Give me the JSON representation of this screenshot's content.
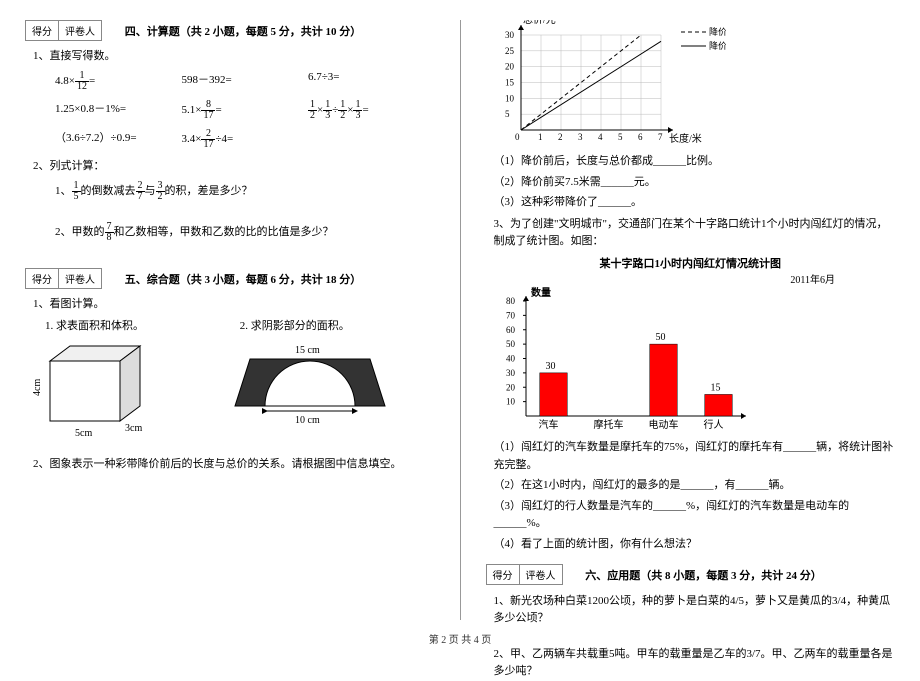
{
  "left": {
    "scorebox": {
      "l": "得分",
      "r": "评卷人"
    },
    "sec4_title": "四、计算题（共 2 小题，每题 5 分，共计 10 分）",
    "q1_head": "1、直接写得数。",
    "eq": {
      "r1a_pre": "4.8×",
      "r1a_num": "1",
      "r1a_den": "12",
      "r1a_post": "=",
      "r1b": "598－392=",
      "r1c": "6.7÷3=",
      "r2a": "1.25×0.8－1%=",
      "r2b_pre": "5.1×",
      "r2b_num": "8",
      "r2b_den": "17",
      "r2b_post": "=",
      "r2c": "×",
      "r2c_div": "÷",
      "r2c_eq": "=",
      "f12n": "1",
      "f12d": "2",
      "f13n": "1",
      "f13d": "3",
      "r3a": "（3.6÷7.2）÷0.9=",
      "r3b_pre": "3.4×",
      "r3b_num": "2",
      "r3b_den": "17",
      "r3b_post": "÷4="
    },
    "q2_head": "2、列式计算：",
    "q2_1_pre": "1、",
    "q2_1_a": "的倒数减去",
    "q2_1_b": "与",
    "q2_1_c": "的积，差是多少？",
    "f15n": "1",
    "f15d": "5",
    "f27n": "2",
    "f27d": "7",
    "f32n": "3",
    "f32d": "2",
    "q2_2_pre": "2、甲数的",
    "q2_2_a": "和乙数相等，甲数和乙数的比的比值是多少？",
    "f78n": "7",
    "f78d": "8",
    "sec5_title": "五、综合题（共 3 小题，每题 6 分，共计 18 分）",
    "q5_1_head": "1、看图计算。",
    "q5_1_1": "1. 求表面积和体积。",
    "q5_1_2": "2. 求阴影部分的面积。",
    "box": {
      "h": "4cm",
      "d": "3cm",
      "w": "5cm"
    },
    "arch": {
      "top": "15 cm",
      "bot": "10 cm"
    },
    "q5_2": "2、图象表示一种彩带降价前后的长度与总价的关系。请根据图中信息填空。"
  },
  "right": {
    "chart1": {
      "ylabel": "总价/元",
      "xlabel": "长度/米",
      "legend1": "降价前",
      "legend2": "降价后",
      "xticks": [
        "0",
        "1",
        "2",
        "3",
        "4",
        "5",
        "6",
        "7"
      ],
      "yticks": [
        "5",
        "10",
        "15",
        "20",
        "25",
        "30"
      ],
      "grid_color": "#bbb",
      "line1_dash": "4,3",
      "line_color": "#000",
      "bg": "#fff"
    },
    "c1_q1": "（1）降价前后，长度与总价都成______比例。",
    "c1_q2": "（2）降价前买7.5米需______元。",
    "c1_q3": "（3）这种彩带降价了______。",
    "q3_head": "3、为了创建\"文明城市\"，交通部门在某个十字路口统计1个小时内闯红灯的情况，制成了统计图。如图：",
    "chart2": {
      "title": "某十字路口1小时内闯红灯情况统计图",
      "date": "2011年6月",
      "ylabel": "数量",
      "categories": [
        "汽车",
        "摩托车",
        "电动车",
        "行人"
      ],
      "values": [
        30,
        null,
        50,
        15
      ],
      "labels": [
        "30",
        "",
        "50",
        "15"
      ],
      "yticks": [
        "10",
        "20",
        "30",
        "40",
        "50",
        "60",
        "70",
        "80"
      ],
      "bar_color": "#ff0000",
      "axis_color": "#000",
      "bg": "#fff"
    },
    "c2_q1": "（1）闯红灯的汽车数量是摩托车的75%，闯红灯的摩托车有______辆，将统计图补充完整。",
    "c2_q2": "（2）在这1小时内，闯红灯的最多的是______，有______辆。",
    "c2_q3": "（3）闯红灯的行人数量是汽车的______%，闯红灯的汽车数量是电动车的______%。",
    "c2_q4": "（4）看了上面的统计图，你有什么想法？",
    "scorebox": {
      "l": "得分",
      "r": "评卷人"
    },
    "sec6_title": "六、应用题（共 8 小题，每题 3 分，共计 24 分）",
    "q6_1": "1、新光农场种白菜1200公顷，种的萝卜是白菜的4/5，萝卜又是黄瓜的3/4，种黄瓜多少公顷？",
    "q6_2": "2、甲、乙两辆车共载重5吨。甲车的载重量是乙车的3/7。甲、乙两车的载重量各是多少吨？"
  },
  "footer": "第 2 页 共 4 页"
}
